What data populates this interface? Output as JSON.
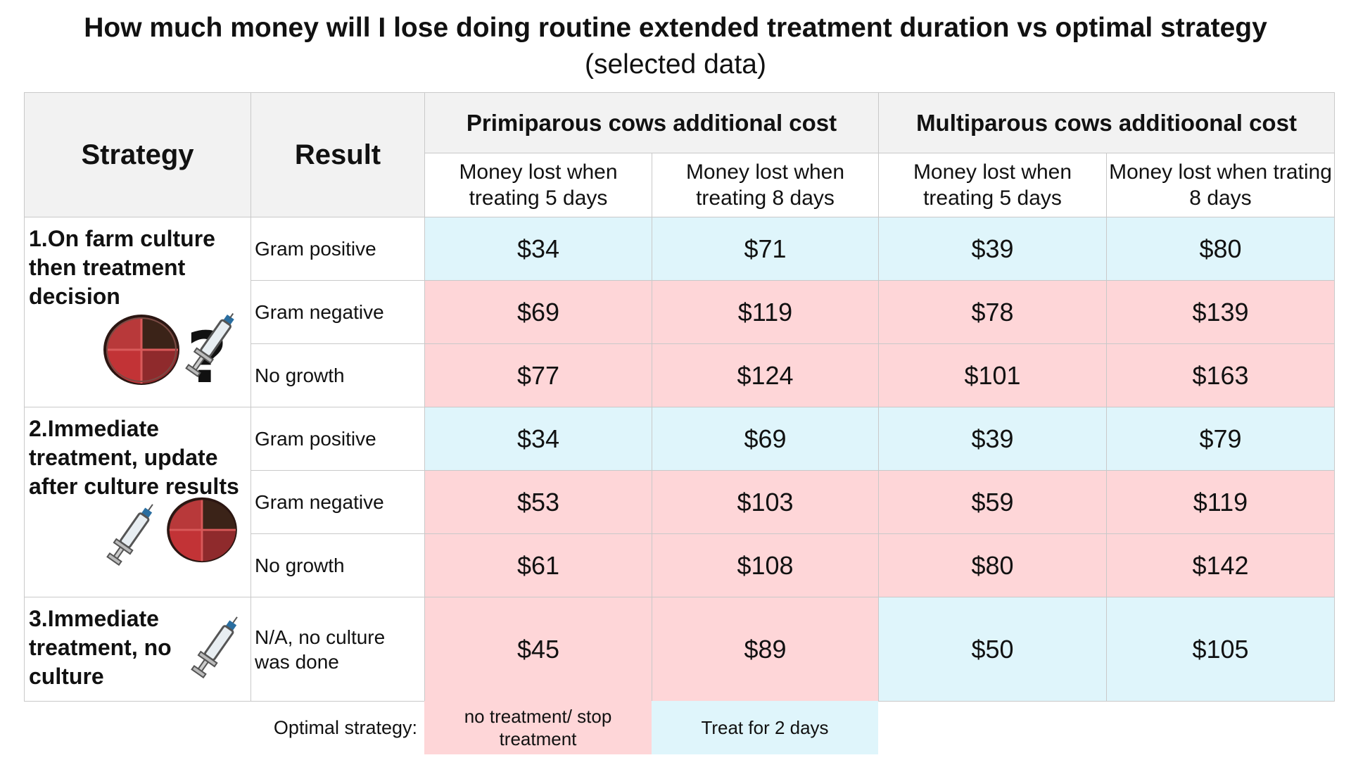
{
  "title": "How much money will I lose doing routine extended treatment duration vs optimal strategy",
  "subtitle": "(selected data)",
  "headers": {
    "strategy": "Strategy",
    "result": "Result",
    "primiparous": "Primiparous cows additional cost",
    "multiparous": "Multiparous cows additioonal cost",
    "prim_5": "Money lost when treating 5 days",
    "prim_8": "Money lost when treating 8 days",
    "multi_5": "Money lost when treating 5 days",
    "multi_8": "Money lost when trating 8 days"
  },
  "strategies": [
    {
      "label": "1.On farm culture then treatment decision",
      "icons": [
        "petri-dish-icon",
        "syringe-question-icon"
      ],
      "rows": [
        {
          "result": "Gram positive",
          "values": [
            "$34",
            "$71",
            "$39",
            "$80"
          ],
          "colors": [
            "blue",
            "blue",
            "blue",
            "blue"
          ]
        },
        {
          "result": "Gram negative",
          "values": [
            "$69",
            "$119",
            "$78",
            "$139"
          ],
          "colors": [
            "pink",
            "pink",
            "pink",
            "pink"
          ]
        },
        {
          "result": "No growth",
          "values": [
            "$77",
            "$124",
            "$101",
            "$163"
          ],
          "colors": [
            "pink",
            "pink",
            "pink",
            "pink"
          ]
        }
      ]
    },
    {
      "label": "2.Immediate treatment, update after culture results",
      "icons": [
        "syringe-icon",
        "petri-dish-icon"
      ],
      "rows": [
        {
          "result": "Gram positive",
          "values": [
            "$34",
            "$69",
            "$39",
            "$79"
          ],
          "colors": [
            "blue",
            "blue",
            "blue",
            "blue"
          ]
        },
        {
          "result": "Gram negative",
          "values": [
            "$53",
            "$103",
            "$59",
            "$119"
          ],
          "colors": [
            "pink",
            "pink",
            "pink",
            "pink"
          ]
        },
        {
          "result": "No growth",
          "values": [
            "$61",
            "$108",
            "$80",
            "$142"
          ],
          "colors": [
            "pink",
            "pink",
            "pink",
            "pink"
          ]
        }
      ]
    },
    {
      "label": "3.Immediate treatment, no culture",
      "icons": [
        "syringe-icon"
      ],
      "rows": [
        {
          "result": "N/A, no culture was done",
          "values": [
            "$45",
            "$89",
            "$50",
            "$105"
          ],
          "colors": [
            "pink",
            "pink",
            "blue",
            "blue"
          ]
        }
      ]
    }
  ],
  "legend": {
    "label": "Optimal strategy:",
    "items": [
      {
        "text": "no treatment/ stop treatment",
        "color": "#fed6d8"
      },
      {
        "text": "Treat for 2 days",
        "color": "#dff5fb"
      }
    ]
  },
  "colors": {
    "blue": "#dff5fb",
    "pink": "#fed6d8",
    "header": "#f2f2f2",
    "border": "#c9c9c9"
  }
}
